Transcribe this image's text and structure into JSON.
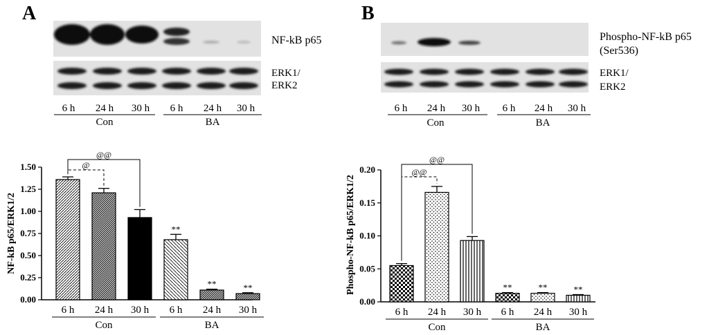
{
  "panel_a": {
    "letter": "A",
    "blot": {
      "top_label": "NF-kB p65",
      "bottom_label_1": "ERK1/",
      "bottom_label_2": "ERK2",
      "lanes": [
        "6 h",
        "24 h",
        "30 h",
        "6 h",
        "24 h",
        "30 h"
      ],
      "groups": [
        "Con",
        "BA"
      ]
    }
  },
  "panel_b": {
    "letter": "B",
    "blot": {
      "top_label_1": "Phospho-NF-kB p65",
      "top_label_2": "(Ser536)",
      "bottom_label_1": "ERK1/",
      "bottom_label_2": "ERK2",
      "lanes": [
        "6 h",
        "24 h",
        "30 h",
        "6 h",
        "24 h",
        "30 h"
      ],
      "groups": [
        "Con",
        "BA"
      ]
    }
  },
  "chart_data": [
    {
      "type": "bar",
      "ylabel": "NF-kB p65/ERK1/2",
      "categories": [
        "6 h",
        "24 h",
        "30 h",
        "6 h",
        "24 h",
        "30 h"
      ],
      "groups": [
        {
          "name": "Con",
          "from": 0,
          "to": 2
        },
        {
          "name": "BA",
          "from": 3,
          "to": 5
        }
      ],
      "values": [
        1.36,
        1.21,
        0.93,
        0.68,
        0.11,
        0.07
      ],
      "errors": [
        0.03,
        0.05,
        0.09,
        0.06,
        0.01,
        0.01
      ],
      "patterns": [
        "diag-fine",
        "diag-dense",
        "solid",
        "diag-light",
        "diag-dense",
        "diag-dense"
      ],
      "annotations": [
        "",
        "",
        "",
        "**",
        "**",
        "**"
      ],
      "ylim": [
        0,
        1.5
      ],
      "yticks": [
        "0.00",
        "0.25",
        "0.50",
        "0.75",
        "1.00",
        "1.25",
        "1.50"
      ],
      "brackets": [
        {
          "from": 0,
          "to": 1,
          "label": "@",
          "style": "dashed"
        },
        {
          "from": 0,
          "to": 2,
          "label": "@@",
          "style": "solid"
        }
      ]
    },
    {
      "type": "bar",
      "ylabel": "Phospho-NF-kB p65/ERK1/2",
      "categories": [
        "6 h",
        "24 h",
        "30 h",
        "6 h",
        "24 h",
        "30 h"
      ],
      "groups": [
        {
          "name": "Con",
          "from": 0,
          "to": 2
        },
        {
          "name": "BA",
          "from": 3,
          "to": 5
        }
      ],
      "values": [
        0.055,
        0.166,
        0.093,
        0.013,
        0.013,
        0.01
      ],
      "errors": [
        0.003,
        0.009,
        0.006,
        0.001,
        0.001,
        0.001
      ],
      "patterns": [
        "checker",
        "dots",
        "vlines",
        "checker",
        "dots",
        "vlines"
      ],
      "annotations": [
        "",
        "",
        "",
        "**",
        "**",
        "**"
      ],
      "ylim": [
        0,
        0.2
      ],
      "yticks": [
        "0.00",
        "0.05",
        "0.10",
        "0.15",
        "0.20"
      ],
      "brackets": [
        {
          "from": 0,
          "to": 1,
          "label": "@@",
          "style": "dashed"
        },
        {
          "from": 0,
          "to": 2,
          "label": "@@",
          "style": "solid"
        }
      ]
    }
  ]
}
